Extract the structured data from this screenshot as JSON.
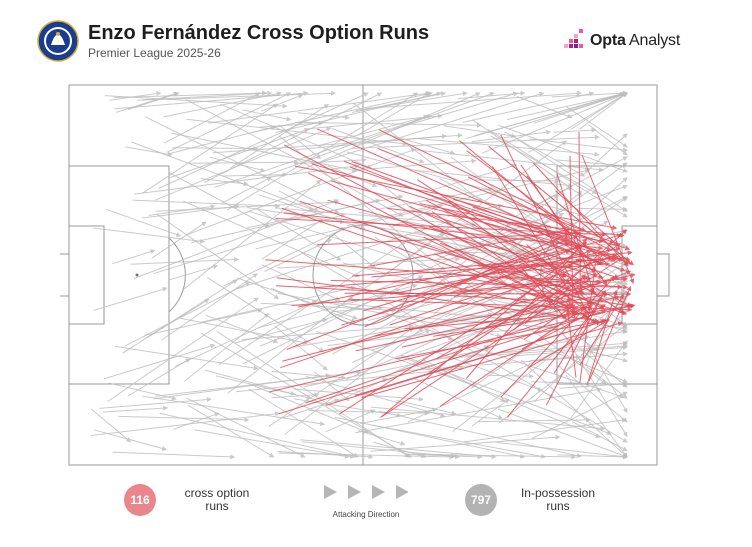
{
  "header": {
    "title": "Enzo Fernández Cross Option Runs",
    "subtitle": "Premier League 2025-26",
    "crest_icon": "chelsea-crest-icon",
    "brand": {
      "prefix": "Opta",
      "suffix": " Analyst",
      "icon": "opta-analyst-logo-icon"
    }
  },
  "colors": {
    "cross_option": "#e14b58",
    "in_possession": "#bdbdbd",
    "pitch_lines": "#9a9a9a"
  },
  "legend": {
    "cross_option_count": "116",
    "cross_option_label": "cross option runs",
    "in_possession_count": "797",
    "in_possession_label": "In-possession runs",
    "direction_label": "Attacking Direction",
    "direction_icon": "play-arrow-icon"
  },
  "chart_data": {
    "type": "scatter",
    "description_units": "pitch coordinates 0-100 (x = attacking direction left to right, y = bottom to top)",
    "xlim": [
      0,
      100
    ],
    "ylim": [
      0,
      100
    ],
    "series": [
      {
        "name": "cross option runs",
        "count": 116
      },
      {
        "name": "In-possession runs",
        "count": 797
      }
    ]
  }
}
